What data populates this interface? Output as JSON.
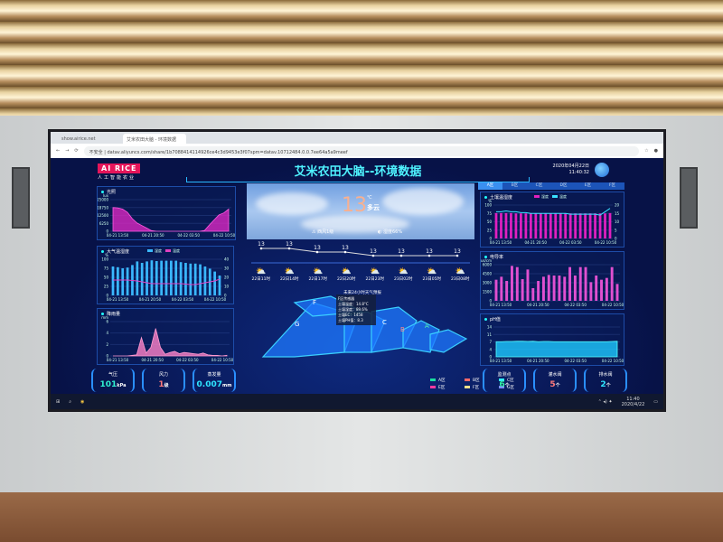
{
  "browser": {
    "tabs": [
      "show.airice.net",
      "艾米农田大脑 - 环境数据"
    ],
    "url_prefix": "不安全",
    "url": "datav.aliyuncs.com/share/1b7088414114926ce4c3d9453e3f07spm=datav.10712484.0.0.7ee64a5a9meef"
  },
  "header": {
    "logo": "AI RICE",
    "logo_sub": "人工智能农业",
    "title": "艾米农田大脑--环境数据",
    "date": "2020年04月22日",
    "time": "11:40:32"
  },
  "left": {
    "light": {
      "title": "光照",
      "unit": "lux",
      "yticks": [
        "25000",
        "18750",
        "12500",
        "6250",
        "0"
      ],
      "xticks": [
        "04-21 13:50",
        "04-21 20:50",
        "04-22 03:50",
        "04-22 10:50"
      ],
      "values": [
        18750,
        18500,
        17500,
        15000,
        10000,
        6500,
        4500,
        2500,
        500,
        0,
        0,
        0,
        0,
        0,
        0,
        0,
        0,
        0,
        0,
        600,
        5000,
        9000,
        13000,
        14500,
        17500
      ]
    },
    "air": {
      "title": "大气温湿度",
      "legend": [
        "湿度",
        "温度"
      ],
      "yleft_unit": "%",
      "yright_unit": "℃",
      "yleft": [
        "100",
        "75",
        "50",
        "25",
        "0"
      ],
      "yright": [
        "40",
        "30",
        "20",
        "10",
        "0"
      ],
      "xticks": [
        "04-21 13:50",
        "04-21 20:50",
        "04-22 03:50",
        "04-22 10:50"
      ],
      "humidity": [
        80,
        78,
        75,
        77,
        84,
        94,
        90,
        94,
        97,
        95,
        96,
        96,
        96,
        96,
        92,
        90,
        88,
        88,
        86,
        80,
        74,
        66,
        55
      ],
      "temperature": [
        17,
        17,
        17,
        17,
        16.5,
        16,
        15,
        14,
        13,
        13,
        13,
        13,
        13,
        13,
        13,
        12.5,
        12,
        12,
        13,
        14,
        15,
        16,
        18
      ]
    },
    "rain": {
      "title": "降雨量",
      "unit": "mm",
      "yticks": [
        "6",
        "4",
        "2",
        "0"
      ],
      "xticks": [
        "04-21 13:50",
        "04-21 20:50",
        "04-22 03:50",
        "04-22 10:50"
      ],
      "values": [
        0,
        0,
        0,
        0,
        0.1,
        0.2,
        3.2,
        0.5,
        1.5,
        4.8,
        1.5,
        0.3,
        0.6,
        0.8,
        0.4,
        0.6,
        0.5,
        0.4,
        0.3,
        0.5,
        0.2,
        0.1,
        0.1,
        0,
        0.1
      ]
    },
    "stats": [
      {
        "label": "气压",
        "value": "101",
        "unit": "kPa",
        "color": "#2ff0d0"
      },
      {
        "label": "风力",
        "value": "1",
        "unit": "级",
        "color": "#ff7a7a"
      },
      {
        "label": "蒸发量",
        "value": "0.007",
        "unit": "mm",
        "color": "#2fe6ff"
      }
    ]
  },
  "center": {
    "weather": {
      "temp": "13",
      "deg": "℃",
      "desc": "多云",
      "wind": "西风1级",
      "humidity": "湿度66%"
    },
    "forecast": {
      "temps": [
        "13",
        "13",
        "13",
        "13",
        "13",
        "13",
        "13",
        "13"
      ],
      "hours": [
        "22日11时",
        "22日14时",
        "22日17时",
        "22日20时",
        "22日23时",
        "23日02时",
        "23日05时",
        "23日08时"
      ],
      "icon": "partly-cloudy-icon",
      "note": "未来24小时天气预报"
    },
    "map": {
      "zones": [
        "A",
        "B",
        "C",
        "F",
        "G"
      ],
      "tooltip": {
        "title": "F区传感器",
        "lines": [
          "土壤温度：14.8°C",
          "土壤湿度：89.6%",
          "土壤EC：1458",
          "土壤PH值：8.3"
        ]
      },
      "legend": [
        {
          "label": "A区",
          "color": "#19e0a0"
        },
        {
          "label": "B区",
          "color": "#ff6a6a"
        },
        {
          "label": "C区",
          "color": "#2ff0ff"
        },
        {
          "label": "E区",
          "color": "#ff3aa0"
        },
        {
          "label": "F区",
          "color": "#f5e08a"
        },
        {
          "label": "G区",
          "color": "#7a8cff"
        }
      ]
    }
  },
  "right": {
    "tabs": [
      "A区",
      "B区",
      "C区",
      "D区",
      "E区",
      "F区"
    ],
    "soil": {
      "title": "土壤温湿度",
      "legend": [
        "湿度",
        "温度"
      ],
      "yleft": [
        "100",
        "75",
        "50",
        "25",
        "0"
      ],
      "yright": [
        "20",
        "15",
        "10",
        "5",
        "0"
      ],
      "xticks": [
        "04-21 13:50",
        "04-21 20:50",
        "04-22 03:50",
        "04-22 10:50"
      ],
      "humidity": [
        76,
        76,
        76,
        76,
        75,
        75,
        75,
        75,
        75,
        75,
        75,
        75,
        75,
        75,
        75,
        75,
        75,
        75,
        75,
        75,
        75,
        75,
        75,
        76
      ],
      "temperature": [
        16,
        16,
        16.5,
        16,
        16,
        15.5,
        15.5,
        15,
        15,
        15,
        15,
        15,
        15,
        15,
        15,
        14.5,
        14.5,
        14.5,
        14.5,
        14.5,
        14.5,
        14,
        16,
        18
      ]
    },
    "ec": {
      "title": "电导率",
      "unit": "us/cm",
      "yticks": [
        "6000",
        "4500",
        "3000",
        "1500",
        "0"
      ],
      "xticks": [
        "04-21 13:50",
        "04-21 20:50",
        "04-22 03:50",
        "04-22 10:50"
      ],
      "values": [
        3500,
        4000,
        3300,
        5800,
        5600,
        3600,
        5200,
        2100,
        3300,
        4000,
        4300,
        4200,
        4200,
        4000,
        5600,
        4200,
        5600,
        5600,
        3100,
        4200,
        3500,
        3800,
        5600,
        2800
      ]
    },
    "ph": {
      "title": "pH值",
      "yticks": [
        "14",
        "11",
        "7",
        "4",
        "0"
      ],
      "xticks": [
        "04-21 13:50",
        "04-21 20:50",
        "04-22 03:50",
        "04-22 10:50"
      ],
      "values": [
        7.1,
        7.1,
        7.2,
        7.2,
        7.3,
        7.3,
        7.2,
        7.3,
        7.1,
        7.2,
        7.2,
        7.1,
        7.1,
        7.1,
        7.1,
        7.1,
        7.1,
        7.1,
        7.1,
        7.1,
        7.1,
        7.1,
        7.2,
        7.3
      ]
    },
    "stats": [
      {
        "label": "监测点",
        "value": "6",
        "unit": "个",
        "color": "#2ff0a0"
      },
      {
        "label": "灌水阀",
        "value": "5",
        "unit": "个",
        "color": "#ff7a7a"
      },
      {
        "label": "排水阀",
        "value": "2",
        "unit": "个",
        "color": "#2fe6ff"
      }
    ]
  },
  "taskbar": {
    "time": "11:40",
    "date": "2020/4/22"
  }
}
